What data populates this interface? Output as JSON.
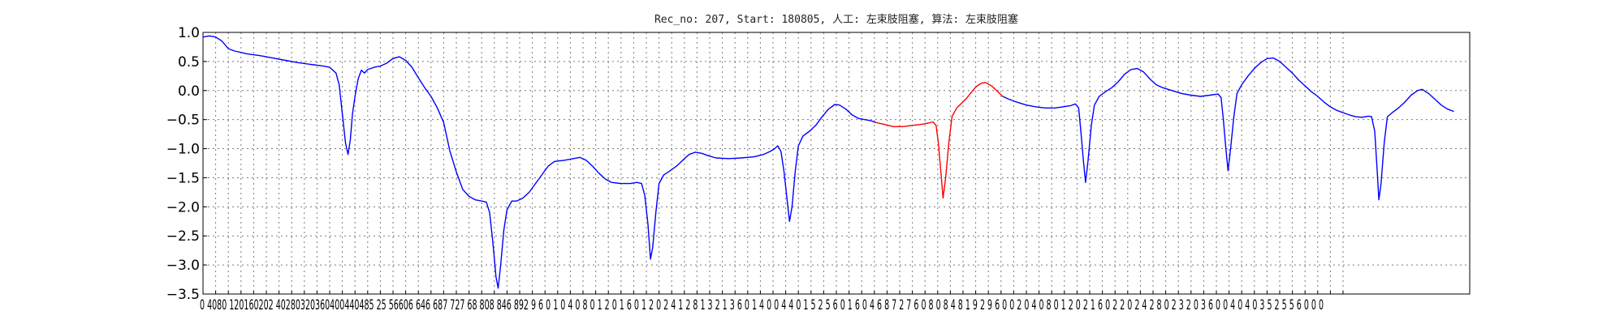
{
  "chart_data": {
    "type": "line",
    "title": "Rec_no: 207, Start: 180805, 人工: 左束肢阻塞, 算法: 左束肢阻塞",
    "xlabel": "",
    "ylabel": "",
    "xlim": [
      0,
      4000
    ],
    "ylim": [
      -3.5,
      1.0
    ],
    "grid": true,
    "x_tick_step": 40,
    "x_tick_last": 3600,
    "xtick_labels_row": "0 4080 120160202 40280320360400440485 25 56606 646 687 727 68 808 846 892 9 6 0 1 0 4 0 8 0 1 2 0 1 6 0 1 2 0 2 4 1 2 8 1 3 2 1 3 6 0 1 4 0 0 4 4 0 1 5 2 5 6 0 1 6 0 4 6 8 7 2 7 6 0 8 0 8 4 8 1 9 2 9 6 0 0 2 0 4 0 8 0 1 2 0 2 1 6 0 2 2 0 2 4 2 8 0 2 3 2 0 3 6 0 0 4 0 4 0 3 5 2 5 5 6 0 0 0",
    "yticks": [
      1.0,
      0.5,
      0.0,
      -0.5,
      -1.0,
      -1.5,
      -2.0,
      -2.5,
      -3.0,
      -3.5
    ],
    "ytick_labels": [
      "1.0",
      "0.5",
      "0.0",
      "−0.5",
      "−1.0",
      "−1.5",
      "−2.0",
      "−2.5",
      "−3.0",
      "−3.5"
    ],
    "colors": {
      "normal": "#0000ff",
      "highlight": "#ff0000"
    },
    "series": [
      {
        "color": "#0000ff",
        "points": [
          [
            0,
            0.92
          ],
          [
            20,
            0.94
          ],
          [
            40,
            0.92
          ],
          [
            60,
            0.85
          ],
          [
            80,
            0.72
          ],
          [
            100,
            0.68
          ],
          [
            140,
            0.63
          ],
          [
            180,
            0.6
          ],
          [
            220,
            0.56
          ],
          [
            260,
            0.52
          ],
          [
            300,
            0.48
          ],
          [
            340,
            0.45
          ],
          [
            380,
            0.42
          ],
          [
            400,
            0.4
          ],
          [
            420,
            0.3
          ],
          [
            430,
            0.1
          ],
          [
            440,
            -0.4
          ],
          [
            450,
            -0.9
          ],
          [
            458,
            -1.1
          ],
          [
            465,
            -0.85
          ],
          [
            472,
            -0.4
          ],
          [
            480,
            -0.1
          ],
          [
            490,
            0.2
          ],
          [
            500,
            0.35
          ],
          [
            510,
            0.3
          ],
          [
            520,
            0.36
          ],
          [
            540,
            0.4
          ],
          [
            560,
            0.42
          ],
          [
            580,
            0.47
          ],
          [
            600,
            0.55
          ],
          [
            620,
            0.58
          ],
          [
            640,
            0.52
          ],
          [
            660,
            0.4
          ],
          [
            680,
            0.22
          ],
          [
            700,
            0.05
          ],
          [
            720,
            -0.1
          ],
          [
            740,
            -0.3
          ],
          [
            760,
            -0.55
          ],
          [
            780,
            -1.05
          ],
          [
            800,
            -1.4
          ],
          [
            820,
            -1.7
          ],
          [
            840,
            -1.82
          ],
          [
            860,
            -1.88
          ],
          [
            880,
            -1.9
          ],
          [
            895,
            -1.92
          ],
          [
            905,
            -2.1
          ],
          [
            915,
            -2.6
          ],
          [
            925,
            -3.2
          ],
          [
            932,
            -3.4
          ],
          [
            940,
            -3.0
          ],
          [
            950,
            -2.4
          ],
          [
            960,
            -2.05
          ],
          [
            975,
            -1.9
          ],
          [
            990,
            -1.9
          ],
          [
            1010,
            -1.85
          ],
          [
            1030,
            -1.75
          ],
          [
            1050,
            -1.6
          ],
          [
            1070,
            -1.45
          ],
          [
            1090,
            -1.3
          ],
          [
            1110,
            -1.22
          ],
          [
            1140,
            -1.2
          ],
          [
            1170,
            -1.17
          ],
          [
            1190,
            -1.15
          ],
          [
            1210,
            -1.2
          ],
          [
            1230,
            -1.3
          ],
          [
            1250,
            -1.42
          ],
          [
            1270,
            -1.52
          ],
          [
            1290,
            -1.58
          ],
          [
            1320,
            -1.6
          ],
          [
            1350,
            -1.6
          ],
          [
            1370,
            -1.58
          ],
          [
            1385,
            -1.6
          ],
          [
            1395,
            -1.8
          ],
          [
            1405,
            -2.3
          ],
          [
            1413,
            -2.9
          ],
          [
            1420,
            -2.7
          ],
          [
            1430,
            -2.1
          ],
          [
            1440,
            -1.6
          ],
          [
            1455,
            -1.45
          ],
          [
            1475,
            -1.38
          ],
          [
            1495,
            -1.3
          ],
          [
            1515,
            -1.2
          ],
          [
            1535,
            -1.1
          ],
          [
            1555,
            -1.06
          ],
          [
            1575,
            -1.08
          ],
          [
            1595,
            -1.12
          ],
          [
            1620,
            -1.16
          ],
          [
            1660,
            -1.17
          ],
          [
            1700,
            -1.16
          ],
          [
            1740,
            -1.14
          ],
          [
            1770,
            -1.1
          ],
          [
            1790,
            -1.05
          ],
          [
            1805,
            -1.0
          ],
          [
            1815,
            -0.95
          ],
          [
            1825,
            -1.05
          ],
          [
            1835,
            -1.4
          ],
          [
            1845,
            -1.9
          ],
          [
            1852,
            -2.25
          ],
          [
            1860,
            -2.0
          ],
          [
            1870,
            -1.4
          ],
          [
            1880,
            -0.95
          ],
          [
            1895,
            -0.78
          ],
          [
            1915,
            -0.7
          ],
          [
            1935,
            -0.6
          ],
          [
            1955,
            -0.45
          ],
          [
            1975,
            -0.32
          ],
          [
            1995,
            -0.24
          ],
          [
            2010,
            -0.25
          ],
          [
            2030,
            -0.32
          ],
          [
            2050,
            -0.42
          ],
          [
            2070,
            -0.48
          ],
          [
            2090,
            -0.5
          ],
          [
            2110,
            -0.52
          ],
          [
            2125,
            -0.55
          ]
        ]
      },
      {
        "color": "#ff0000",
        "points": [
          [
            2125,
            -0.55
          ],
          [
            2150,
            -0.58
          ],
          [
            2180,
            -0.62
          ],
          [
            2210,
            -0.62
          ],
          [
            2240,
            -0.6
          ],
          [
            2270,
            -0.58
          ],
          [
            2290,
            -0.56
          ],
          [
            2305,
            -0.54
          ],
          [
            2315,
            -0.6
          ],
          [
            2322,
            -0.9
          ],
          [
            2330,
            -1.4
          ],
          [
            2337,
            -1.85
          ],
          [
            2345,
            -1.5
          ],
          [
            2355,
            -0.9
          ],
          [
            2365,
            -0.45
          ],
          [
            2380,
            -0.3
          ],
          [
            2395,
            -0.22
          ],
          [
            2410,
            -0.14
          ],
          [
            2425,
            -0.04
          ],
          [
            2440,
            0.06
          ],
          [
            2455,
            0.12
          ],
          [
            2470,
            0.14
          ],
          [
            2490,
            0.08
          ],
          [
            2510,
            -0.02
          ],
          [
            2525,
            -0.1
          ]
        ]
      },
      {
        "color": "#0000ff",
        "points": [
          [
            2525,
            -0.1
          ],
          [
            2545,
            -0.15
          ],
          [
            2570,
            -0.2
          ],
          [
            2600,
            -0.25
          ],
          [
            2630,
            -0.28
          ],
          [
            2660,
            -0.3
          ],
          [
            2690,
            -0.3
          ],
          [
            2715,
            -0.28
          ],
          [
            2740,
            -0.26
          ],
          [
            2755,
            -0.23
          ],
          [
            2765,
            -0.3
          ],
          [
            2772,
            -0.7
          ],
          [
            2780,
            -1.2
          ],
          [
            2787,
            -1.58
          ],
          [
            2795,
            -1.2
          ],
          [
            2805,
            -0.6
          ],
          [
            2815,
            -0.25
          ],
          [
            2830,
            -0.1
          ],
          [
            2850,
            -0.02
          ],
          [
            2870,
            0.05
          ],
          [
            2890,
            0.15
          ],
          [
            2910,
            0.28
          ],
          [
            2930,
            0.36
          ],
          [
            2950,
            0.38
          ],
          [
            2970,
            0.32
          ],
          [
            2990,
            0.2
          ],
          [
            3010,
            0.1
          ],
          [
            3030,
            0.05
          ],
          [
            3060,
            0.0
          ],
          [
            3090,
            -0.05
          ],
          [
            3120,
            -0.08
          ],
          [
            3150,
            -0.1
          ],
          [
            3180,
            -0.08
          ],
          [
            3205,
            -0.06
          ],
          [
            3215,
            -0.12
          ],
          [
            3222,
            -0.5
          ],
          [
            3230,
            -1.0
          ],
          [
            3237,
            -1.38
          ],
          [
            3245,
            -1.0
          ],
          [
            3255,
            -0.45
          ],
          [
            3265,
            -0.05
          ],
          [
            3280,
            0.1
          ],
          [
            3300,
            0.25
          ],
          [
            3320,
            0.38
          ],
          [
            3340,
            0.48
          ],
          [
            3360,
            0.55
          ],
          [
            3380,
            0.56
          ],
          [
            3400,
            0.5
          ],
          [
            3420,
            0.4
          ],
          [
            3440,
            0.3
          ],
          [
            3460,
            0.18
          ],
          [
            3480,
            0.08
          ],
          [
            3500,
            -0.02
          ],
          [
            3520,
            -0.1
          ],
          [
            3540,
            -0.2
          ],
          [
            3560,
            -0.28
          ],
          [
            3580,
            -0.34
          ],
          [
            3600,
            -0.38
          ],
          [
            3620,
            -0.42
          ],
          [
            3640,
            -0.45
          ],
          [
            3660,
            -0.46
          ],
          [
            3680,
            -0.44
          ],
          [
            3690,
            -0.45
          ],
          [
            3700,
            -0.7
          ],
          [
            3707,
            -1.3
          ],
          [
            3713,
            -1.88
          ],
          [
            3720,
            -1.6
          ],
          [
            3730,
            -0.9
          ],
          [
            3740,
            -0.45
          ],
          [
            3755,
            -0.38
          ],
          [
            3775,
            -0.3
          ],
          [
            3795,
            -0.2
          ],
          [
            3815,
            -0.08
          ],
          [
            3835,
            0.0
          ],
          [
            3850,
            0.02
          ],
          [
            3870,
            -0.05
          ],
          [
            3890,
            -0.15
          ],
          [
            3910,
            -0.25
          ],
          [
            3930,
            -0.32
          ],
          [
            3950,
            -0.36
          ]
        ]
      }
    ]
  }
}
